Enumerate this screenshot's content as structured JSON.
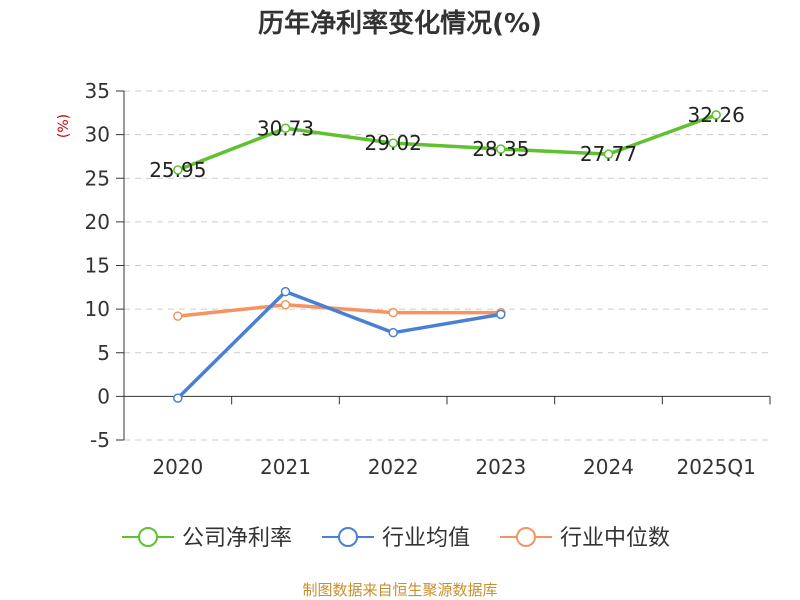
{
  "chart_data": {
    "type": "line",
    "title": "历年净利率变化情况(%)",
    "ylabel": "(%)",
    "categories": [
      "2020",
      "2021",
      "2022",
      "2023",
      "2024",
      "2025Q1"
    ],
    "ylim": [
      -5,
      35
    ],
    "yticks": [
      -5,
      0,
      5,
      10,
      15,
      20,
      25,
      30,
      35
    ],
    "grid": true,
    "legend_position": "bottom",
    "series": [
      {
        "name": "公司净利率",
        "color": "#5ec12e",
        "values": [
          25.95,
          30.73,
          29.02,
          28.35,
          27.77,
          32.26
        ],
        "labels": [
          "25.95",
          "30.73",
          "29.02",
          "28.35",
          "27.77",
          "32.26"
        ]
      },
      {
        "name": "行业均值",
        "color": "#4a7fd6",
        "values": [
          -0.2,
          12.0,
          7.3,
          9.4,
          null,
          null
        ]
      },
      {
        "name": "行业中位数",
        "color": "#f59362",
        "values": [
          9.2,
          10.5,
          9.6,
          9.6,
          null,
          null
        ]
      }
    ]
  },
  "source": "制图数据来自恒生聚源数据库"
}
